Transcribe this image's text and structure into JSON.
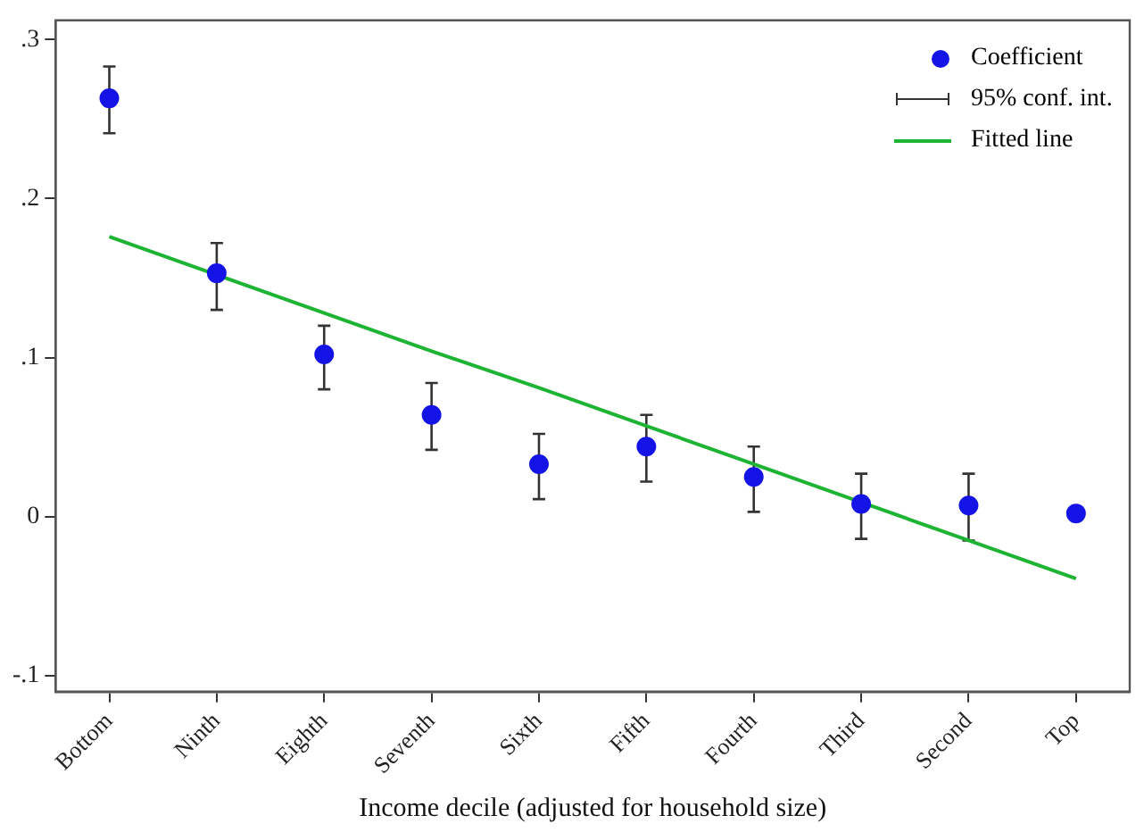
{
  "chart_data": {
    "type": "scatter",
    "xlabel": "Income decile (adjusted for household size)",
    "categories": [
      "Bottom",
      "Ninth",
      "Eighth",
      "Seventh",
      "Sixth",
      "Fifth",
      "Fourth",
      "Third",
      "Second",
      "Top"
    ],
    "series": [
      {
        "name": "Coefficient",
        "color": "#1414e6",
        "marker": "circle",
        "values": [
          0.263,
          0.153,
          0.102,
          0.064,
          0.033,
          0.044,
          0.025,
          0.008,
          0.007,
          0.002
        ],
        "errors": [
          [
            0.241,
            0.283
          ],
          [
            0.13,
            0.172
          ],
          [
            0.08,
            0.12
          ],
          [
            0.042,
            0.084
          ],
          [
            0.011,
            0.052
          ],
          [
            0.022,
            0.064
          ],
          [
            0.003,
            0.044
          ],
          [
            -0.014,
            0.027
          ],
          [
            -0.015,
            0.027
          ],
          [
            0.001,
            0.003
          ]
        ]
      },
      {
        "name": "Fitted line",
        "type": "line",
        "color": "#1db333",
        "marker": "none",
        "values": [
          0.176,
          0.152,
          0.128,
          0.104,
          0.081,
          0.057,
          0.033,
          0.009,
          -0.015,
          -0.039
        ]
      }
    ],
    "annotations": [
      "95% conf. int."
    ],
    "ylim": [
      -0.11,
      0.312
    ],
    "yticks": [
      {
        "value": -0.1,
        "label": "-.1"
      },
      {
        "value": 0,
        "label": "0"
      },
      {
        "value": 0.1,
        "label": ".1"
      },
      {
        "value": 0.2,
        "label": ".2"
      },
      {
        "value": 0.3,
        "label": ".3"
      }
    ],
    "grid": false,
    "legend": "top right"
  }
}
